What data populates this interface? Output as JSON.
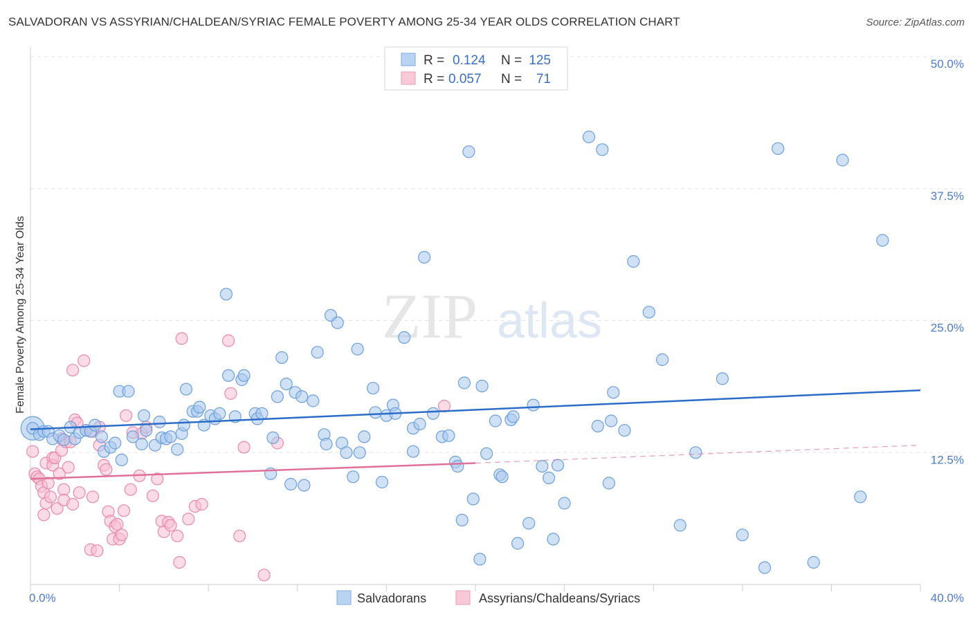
{
  "title": "SALVADORAN VS ASSYRIAN/CHALDEAN/SYRIAC FEMALE POVERTY AMONG 25-34 YEAR OLDS CORRELATION CHART",
  "source": "Source: ZipAtlas.com",
  "watermark": {
    "zip": "ZIP",
    "atlas": "atlas"
  },
  "legend_top": [
    {
      "r_label": "R =",
      "r_value": "0.124",
      "n_label": "N =",
      "n_value": "125",
      "color": "#7fb0e8"
    },
    {
      "r_label": "R =",
      "r_value": "0.057",
      "n_label": "N =",
      "n_value": "71",
      "color": "#f4a6c0"
    }
  ],
  "colors": {
    "blue_fill": "#a9c8ee",
    "blue_stroke": "#6a9fde",
    "blue_line": "#2a6cc8",
    "pink_fill": "#f7bfd2",
    "pink_stroke": "#ea88a8",
    "pink_line": "#e0709a",
    "tick_text": "#4a7cc9",
    "grid": "#e3e3e3"
  },
  "chart_data": {
    "type": "scatter",
    "ylabel": "Female Poverty Among 25-34 Year Olds",
    "xlim": [
      0,
      40
    ],
    "ylim": [
      0,
      50
    ],
    "y_ticks": [
      {
        "value": 12.5,
        "label": "12.5%"
      },
      {
        "value": 25.0,
        "label": "25.0%"
      },
      {
        "value": 37.5,
        "label": "37.5%"
      },
      {
        "value": 50.0,
        "label": "50.0%"
      }
    ],
    "x_ticks": [
      {
        "value": 0,
        "label": "0.0%"
      },
      {
        "value": 40,
        "label": "40.0%"
      }
    ],
    "grid": true,
    "legend_position": "top-center",
    "series": [
      {
        "name": "Salvadorans",
        "trend": [
          [
            0,
            14.7
          ],
          [
            40,
            18.4
          ]
        ],
        "points": [
          [
            0.1,
            14.8
          ],
          [
            0.4,
            14.2
          ],
          [
            0.6,
            14.5
          ],
          [
            0.8,
            14.5
          ],
          [
            1.0,
            13.8
          ],
          [
            1.3,
            14.1
          ],
          [
            1.5,
            13.7
          ],
          [
            1.8,
            14.9
          ],
          [
            2.0,
            13.8
          ],
          [
            2.2,
            14.4
          ],
          [
            2.5,
            14.6
          ],
          [
            2.7,
            14.5
          ],
          [
            2.9,
            15.1
          ],
          [
            3.2,
            14.0
          ],
          [
            3.3,
            12.6
          ],
          [
            3.6,
            13.0
          ],
          [
            3.8,
            13.4
          ],
          [
            4.0,
            18.3
          ],
          [
            4.1,
            11.8
          ],
          [
            4.4,
            18.3
          ],
          [
            4.6,
            14.0
          ],
          [
            5.0,
            13.3
          ],
          [
            5.1,
            16.0
          ],
          [
            5.2,
            14.6
          ],
          [
            5.6,
            13.2
          ],
          [
            5.8,
            15.4
          ],
          [
            5.9,
            13.9
          ],
          [
            6.1,
            13.8
          ],
          [
            6.3,
            14.0
          ],
          [
            6.6,
            12.8
          ],
          [
            6.8,
            14.3
          ],
          [
            6.9,
            15.1
          ],
          [
            7.0,
            18.5
          ],
          [
            7.3,
            16.4
          ],
          [
            7.5,
            16.4
          ],
          [
            7.6,
            16.8
          ],
          [
            7.8,
            15.1
          ],
          [
            8.1,
            16.0
          ],
          [
            8.3,
            15.7
          ],
          [
            8.5,
            16.2
          ],
          [
            8.8,
            27.5
          ],
          [
            8.9,
            19.8
          ],
          [
            9.2,
            15.9
          ],
          [
            9.5,
            19.4
          ],
          [
            9.6,
            19.8
          ],
          [
            10.1,
            16.2
          ],
          [
            10.2,
            15.7
          ],
          [
            10.4,
            16.2
          ],
          [
            10.8,
            10.5
          ],
          [
            10.9,
            13.9
          ],
          [
            11.1,
            17.8
          ],
          [
            11.3,
            21.5
          ],
          [
            11.5,
            19.0
          ],
          [
            11.7,
            9.5
          ],
          [
            11.9,
            18.2
          ],
          [
            12.2,
            17.8
          ],
          [
            12.3,
            9.4
          ],
          [
            12.7,
            17.4
          ],
          [
            12.9,
            22.0
          ],
          [
            13.2,
            14.2
          ],
          [
            13.3,
            13.3
          ],
          [
            13.5,
            25.5
          ],
          [
            13.8,
            24.8
          ],
          [
            14.0,
            13.4
          ],
          [
            14.2,
            12.5
          ],
          [
            14.5,
            10.2
          ],
          [
            14.7,
            22.3
          ],
          [
            14.8,
            12.5
          ],
          [
            15.0,
            14.0
          ],
          [
            15.4,
            18.6
          ],
          [
            15.5,
            16.3
          ],
          [
            15.8,
            9.7
          ],
          [
            16.0,
            16.0
          ],
          [
            16.3,
            17.0
          ],
          [
            16.4,
            16.2
          ],
          [
            16.8,
            23.4
          ],
          [
            17.2,
            14.8
          ],
          [
            17.2,
            12.6
          ],
          [
            17.5,
            15.2
          ],
          [
            17.7,
            31.0
          ],
          [
            18.1,
            16.2
          ],
          [
            18.5,
            14.0
          ],
          [
            18.8,
            14.1
          ],
          [
            19.1,
            11.6
          ],
          [
            19.2,
            11.2
          ],
          [
            19.4,
            6.1
          ],
          [
            19.5,
            19.1
          ],
          [
            19.7,
            41.0
          ],
          [
            19.9,
            8.1
          ],
          [
            20.2,
            2.4
          ],
          [
            20.3,
            18.8
          ],
          [
            20.5,
            12.4
          ],
          [
            20.9,
            15.5
          ],
          [
            21.1,
            10.4
          ],
          [
            21.2,
            10.2
          ],
          [
            21.6,
            15.6
          ],
          [
            21.7,
            15.9
          ],
          [
            21.9,
            3.9
          ],
          [
            22.4,
            5.8
          ],
          [
            22.6,
            17.0
          ],
          [
            23.0,
            11.2
          ],
          [
            23.3,
            10.1
          ],
          [
            23.5,
            4.3
          ],
          [
            23.7,
            11.3
          ],
          [
            24.0,
            7.7
          ],
          [
            25.1,
            42.4
          ],
          [
            25.5,
            15.0
          ],
          [
            25.7,
            41.2
          ],
          [
            26.0,
            9.6
          ],
          [
            26.1,
            15.5
          ],
          [
            26.2,
            18.2
          ],
          [
            26.7,
            14.6
          ],
          [
            27.1,
            30.6
          ],
          [
            27.8,
            25.8
          ],
          [
            28.4,
            21.3
          ],
          [
            29.2,
            5.6
          ],
          [
            29.9,
            12.5
          ],
          [
            31.1,
            19.5
          ],
          [
            32.0,
            4.7
          ],
          [
            33.0,
            1.6
          ],
          [
            33.6,
            41.3
          ],
          [
            35.2,
            2.1
          ],
          [
            36.5,
            40.2
          ],
          [
            37.3,
            8.3
          ],
          [
            38.3,
            32.6
          ]
        ]
      },
      {
        "name": "Assyrians/Chaldeans/Syriacs",
        "trend": [
          [
            0,
            10.0
          ],
          [
            20,
            11.5
          ]
        ],
        "trend_dashed": [
          [
            20,
            11.5
          ],
          [
            40,
            13.2
          ]
        ],
        "points": [
          [
            0.1,
            12.6
          ],
          [
            0.2,
            10.5
          ],
          [
            0.3,
            10.2
          ],
          [
            0.4,
            10.0
          ],
          [
            0.5,
            9.3
          ],
          [
            0.6,
            8.7
          ],
          [
            0.6,
            6.6
          ],
          [
            0.7,
            11.5
          ],
          [
            0.7,
            7.7
          ],
          [
            0.8,
            9.6
          ],
          [
            0.9,
            8.3
          ],
          [
            1.0,
            12.0
          ],
          [
            1.0,
            11.3
          ],
          [
            1.1,
            12.0
          ],
          [
            1.2,
            7.2
          ],
          [
            1.3,
            10.5
          ],
          [
            1.4,
            12.7
          ],
          [
            1.4,
            13.8
          ],
          [
            1.5,
            9.0
          ],
          [
            1.5,
            8.0
          ],
          [
            1.6,
            13.5
          ],
          [
            1.7,
            11.1
          ],
          [
            1.8,
            13.5
          ],
          [
            1.9,
            7.6
          ],
          [
            1.9,
            20.3
          ],
          [
            2.0,
            15.6
          ],
          [
            2.1,
            15.3
          ],
          [
            2.2,
            8.7
          ],
          [
            2.4,
            21.2
          ],
          [
            2.5,
            14.6
          ],
          [
            2.7,
            3.3
          ],
          [
            2.8,
            14.5
          ],
          [
            2.8,
            8.3
          ],
          [
            3.0,
            3.2
          ],
          [
            3.1,
            14.9
          ],
          [
            3.1,
            13.2
          ],
          [
            3.3,
            11.3
          ],
          [
            3.4,
            10.9
          ],
          [
            3.5,
            6.9
          ],
          [
            3.6,
            6.0
          ],
          [
            3.7,
            4.3
          ],
          [
            3.8,
            5.5
          ],
          [
            3.9,
            5.7
          ],
          [
            4.0,
            4.3
          ],
          [
            4.1,
            4.7
          ],
          [
            4.2,
            7.0
          ],
          [
            4.3,
            16.0
          ],
          [
            4.5,
            9.0
          ],
          [
            4.6,
            14.4
          ],
          [
            4.9,
            10.3
          ],
          [
            5.0,
            14.3
          ],
          [
            5.2,
            14.9
          ],
          [
            5.5,
            8.4
          ],
          [
            5.7,
            10.0
          ],
          [
            5.9,
            6.0
          ],
          [
            6.0,
            5.0
          ],
          [
            6.2,
            5.9
          ],
          [
            6.3,
            5.6
          ],
          [
            6.6,
            4.6
          ],
          [
            6.7,
            2.1
          ],
          [
            6.8,
            23.3
          ],
          [
            7.1,
            6.2
          ],
          [
            7.4,
            7.4
          ],
          [
            7.7,
            7.6
          ],
          [
            8.9,
            23.1
          ],
          [
            9.0,
            18.1
          ],
          [
            9.4,
            4.6
          ],
          [
            9.6,
            13.0
          ],
          [
            10.5,
            0.9
          ],
          [
            11.1,
            13.4
          ],
          [
            18.6,
            16.9
          ]
        ]
      }
    ]
  },
  "legend_bottom": [
    {
      "label": "Salvadorans",
      "color": "#a9c8ee"
    },
    {
      "label": "Assyrians/Chaldeans/Syriacs",
      "color": "#f7bfd2"
    }
  ]
}
